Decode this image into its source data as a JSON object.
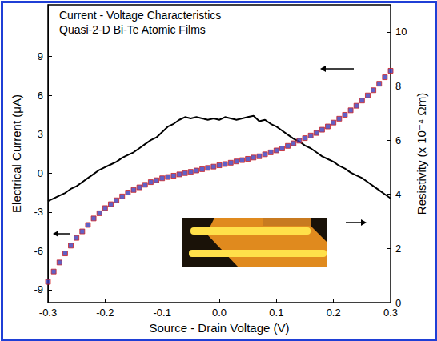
{
  "chart_data": {
    "type": "line",
    "annotations": [
      "Current - Voltage Characteristics",
      "Quasi-2-D Bi-Te Atomic Films"
    ],
    "x_label": "Source - Drain Voltage (V)",
    "y_label": "Electrical Current (μA)",
    "y2_label": "Resistivity (x 10⁻⁴ Ωm)",
    "x": [
      -0.3,
      -0.29,
      -0.28,
      -0.27,
      -0.26,
      -0.25,
      -0.24,
      -0.23,
      -0.22,
      -0.21,
      -0.2,
      -0.19,
      -0.18,
      -0.17,
      -0.16,
      -0.15,
      -0.14,
      -0.13,
      -0.12,
      -0.11,
      -0.1,
      -0.09,
      -0.08,
      -0.07,
      -0.06,
      -0.05,
      -0.04,
      -0.03,
      -0.02,
      -0.01,
      0.0,
      0.01,
      0.02,
      0.03,
      0.04,
      0.05,
      0.06,
      0.07,
      0.08,
      0.09,
      0.1,
      0.11,
      0.12,
      0.13,
      0.14,
      0.15,
      0.16,
      0.17,
      0.18,
      0.19,
      0.2,
      0.21,
      0.22,
      0.23,
      0.24,
      0.25,
      0.26,
      0.27,
      0.28,
      0.29,
      0.3
    ],
    "series": [
      {
        "type": "scatter",
        "marker": "square",
        "color": "#3a3ab8",
        "values": [
          -8.4,
          -7.6,
          -6.9,
          -6.2,
          -5.6,
          -5.0,
          -4.5,
          -4.0,
          -3.5,
          -3.1,
          -2.7,
          -2.4,
          -2.1,
          -1.8,
          -1.5,
          -1.3,
          -1.1,
          -0.9,
          -0.7,
          -0.55,
          -0.4,
          -0.3,
          -0.2,
          -0.1,
          0.0,
          0.1,
          0.2,
          0.3,
          0.4,
          0.5,
          0.6,
          0.7,
          0.8,
          0.9,
          1.0,
          1.1,
          1.2,
          1.3,
          1.45,
          1.6,
          1.75,
          1.9,
          2.1,
          2.3,
          2.5,
          2.7,
          2.9,
          3.1,
          3.35,
          3.6,
          3.9,
          4.2,
          4.5,
          4.85,
          5.2,
          5.6,
          6.0,
          6.4,
          6.9,
          7.4,
          7.9
        ]
      },
      {
        "type": "line",
        "line_style": "solid",
        "color": "#000000",
        "axis": "y2",
        "values": [
          3.75,
          3.85,
          3.95,
          4.05,
          4.2,
          4.3,
          4.45,
          4.6,
          4.75,
          4.9,
          5.0,
          5.1,
          5.2,
          5.35,
          5.45,
          5.55,
          5.7,
          5.85,
          6.0,
          6.1,
          6.3,
          6.5,
          6.6,
          6.75,
          6.85,
          6.8,
          6.85,
          6.8,
          6.75,
          6.8,
          6.75,
          6.85,
          6.8,
          6.75,
          6.8,
          6.85,
          6.9,
          6.7,
          6.75,
          6.6,
          6.5,
          6.35,
          6.2,
          6.05,
          5.95,
          5.8,
          5.7,
          5.55,
          5.4,
          5.3,
          5.2,
          5.05,
          4.95,
          4.8,
          4.7,
          4.6,
          4.45,
          4.3,
          4.15,
          4.0,
          3.85
        ]
      }
    ],
    "xlim": [
      -0.3,
      0.3
    ],
    "xticks": [
      -0.3,
      -0.2,
      -0.1,
      {
        "value": 0,
        "label": "0.0"
      },
      0.1,
      0.2,
      0.3
    ],
    "ylim": [
      -10,
      13
    ],
    "yticks": [
      -9,
      -6,
      -3,
      0,
      3,
      6,
      9
    ],
    "y2lim": [
      0,
      11
    ],
    "y2ticks": [
      0,
      2,
      4,
      6,
      8,
      10
    ],
    "grid": false
  }
}
